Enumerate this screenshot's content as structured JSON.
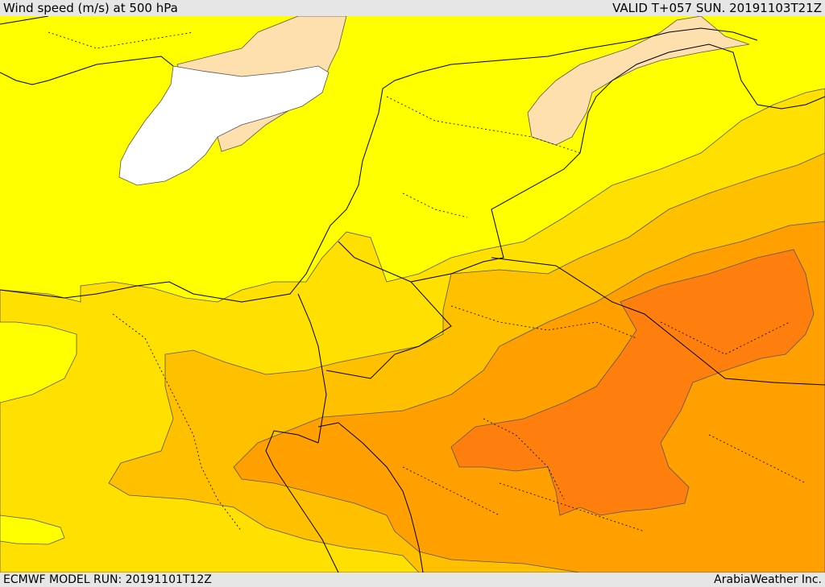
{
  "header": {
    "title": "Wind speed (m/s) at 500 hPa",
    "valid": "VALID T+057 SUN. 20191103T21Z"
  },
  "footer": {
    "model_run": "ECMWF MODEL RUN: 20191101T12Z",
    "credit": "ArabiaWeather Inc."
  },
  "colors": {
    "band_white": "#ffffff",
    "band_peach": "#fde0ad",
    "band_yellow": "#ffff00",
    "band_gold": "#ffe000",
    "band_amber": "#ffc000",
    "band_orange": "#ffa000",
    "band_darkorange": "#ff7f0e",
    "lines": "#000000"
  }
}
